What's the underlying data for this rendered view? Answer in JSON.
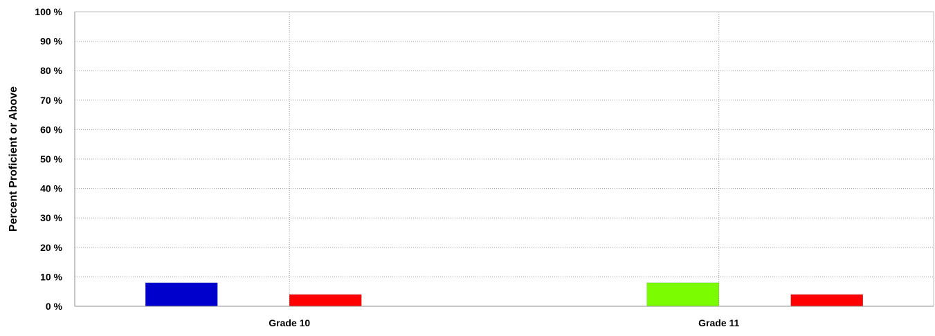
{
  "chart_data": {
    "type": "bar",
    "ylabel": "Percent Proficient or Above",
    "xlabel": "",
    "ylim": [
      0,
      100
    ],
    "ytick_values": [
      0,
      10,
      20,
      30,
      40,
      50,
      60,
      70,
      80,
      90,
      100
    ],
    "ytick_labels": [
      "0 %",
      "10 %",
      "20 %",
      "30 %",
      "40 %",
      "50 %",
      "60 %",
      "70 %",
      "80 %",
      "90 %",
      "100 %"
    ],
    "grid": true,
    "legend": "none",
    "categories": [
      "Grade 10",
      "Grade 11"
    ],
    "series": [
      {
        "color": "#0000cc",
        "values": [
          8,
          null
        ]
      },
      {
        "color": "#7cfc00",
        "values": [
          null,
          8
        ]
      },
      {
        "color": "#ff0000",
        "values": [
          4,
          null
        ]
      },
      {
        "color": "#ff0000",
        "values": [
          null,
          4
        ]
      }
    ]
  }
}
